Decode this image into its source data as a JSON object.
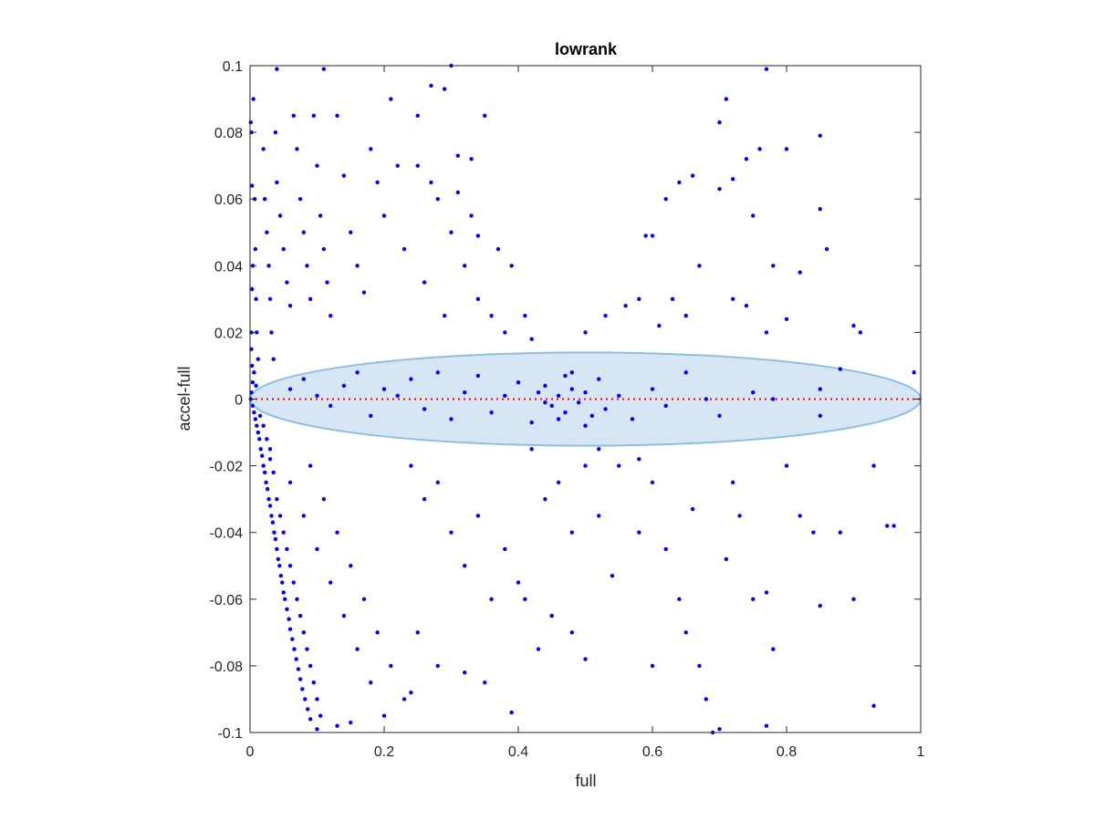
{
  "chart_data": {
    "type": "scatter",
    "title": "lowrank",
    "xlabel": "full",
    "ylabel": "accel-full",
    "xlim": [
      0,
      1
    ],
    "ylim": [
      -0.1,
      0.1
    ],
    "xticks": [
      0,
      0.2,
      0.4,
      0.6,
      0.8,
      1
    ],
    "yticks": [
      -0.1,
      -0.08,
      -0.06,
      -0.04,
      -0.02,
      0,
      0.02,
      0.04,
      0.06,
      0.08,
      0.1
    ],
    "xtick_labels": [
      "0",
      "0.2",
      "0.4",
      "0.6",
      "0.8",
      "1"
    ],
    "ytick_labels": [
      "-0.1",
      "-0.08",
      "-0.06",
      "-0.04",
      "-0.02",
      "0",
      "0.02",
      "0.04",
      "0.06",
      "0.08",
      "0.1"
    ],
    "grid": false,
    "box": true,
    "colors": {
      "points": "#0000ff",
      "zero_line": "#ff0000",
      "ellipse_fill": "#d6e6f4",
      "ellipse_edge": "#8ebfe0"
    },
    "reference_line": {
      "y": 0,
      "style": "dotted"
    },
    "ellipse": {
      "cx": 0.5,
      "cy": 0,
      "rx": 0.5,
      "ry": 0.014
    },
    "points": [
      [
        0.001,
        0.083
      ],
      [
        0.002,
        0.08
      ],
      [
        0.003,
        0.064
      ],
      [
        0.004,
        0.04
      ],
      [
        0.003,
        0.033
      ],
      [
        0.002,
        0.02
      ],
      [
        0.002,
        0.015
      ],
      [
        0.003,
        0.01
      ],
      [
        0.004,
        0.005
      ],
      [
        0.002,
        0.002
      ],
      [
        0.001,
        0
      ],
      [
        0.005,
        0.09
      ],
      [
        0.007,
        0.06
      ],
      [
        0.008,
        0.045
      ],
      [
        0.009,
        0.03
      ],
      [
        0.01,
        0.02
      ],
      [
        0.012,
        0.012
      ],
      [
        0.006,
        0.008
      ],
      [
        0.009,
        0.004
      ],
      [
        0.004,
        -0.002
      ],
      [
        0.006,
        -0.004
      ],
      [
        0.008,
        -0.006
      ],
      [
        0.01,
        -0.008
      ],
      [
        0.012,
        -0.01
      ],
      [
        0.014,
        -0.012
      ],
      [
        0.016,
        -0.015
      ],
      [
        0.018,
        -0.017
      ],
      [
        0.02,
        -0.02
      ],
      [
        0.022,
        -0.022
      ],
      [
        0.024,
        -0.025
      ],
      [
        0.026,
        -0.027
      ],
      [
        0.028,
        -0.03
      ],
      [
        0.03,
        -0.032
      ],
      [
        0.032,
        -0.035
      ],
      [
        0.034,
        -0.037
      ],
      [
        0.036,
        -0.04
      ],
      [
        0.038,
        -0.042
      ],
      [
        0.04,
        -0.045
      ],
      [
        0.042,
        -0.048
      ],
      [
        0.044,
        -0.05
      ],
      [
        0.046,
        -0.053
      ],
      [
        0.048,
        -0.055
      ],
      [
        0.05,
        -0.058
      ],
      [
        0.052,
        -0.06
      ],
      [
        0.055,
        -0.063
      ],
      [
        0.058,
        -0.066
      ],
      [
        0.06,
        -0.069
      ],
      [
        0.063,
        -0.072
      ],
      [
        0.066,
        -0.075
      ],
      [
        0.069,
        -0.078
      ],
      [
        0.072,
        -0.081
      ],
      [
        0.075,
        -0.084
      ],
      [
        0.078,
        -0.087
      ],
      [
        0.082,
        -0.09
      ],
      [
        0.086,
        -0.093
      ],
      [
        0.09,
        -0.096
      ],
      [
        0.1,
        -0.099
      ],
      [
        0.015,
        -0.005
      ],
      [
        0.02,
        -0.008
      ],
      [
        0.025,
        -0.012
      ],
      [
        0.03,
        -0.018
      ],
      [
        0.035,
        -0.022
      ],
      [
        0.04,
        -0.03
      ],
      [
        0.045,
        -0.035
      ],
      [
        0.05,
        -0.04
      ],
      [
        0.055,
        -0.045
      ],
      [
        0.06,
        -0.05
      ],
      [
        0.065,
        -0.055
      ],
      [
        0.07,
        -0.06
      ],
      [
        0.075,
        -0.065
      ],
      [
        0.08,
        -0.07
      ],
      [
        0.085,
        -0.075
      ],
      [
        0.09,
        -0.08
      ],
      [
        0.095,
        -0.085
      ],
      [
        0.1,
        -0.09
      ],
      [
        0.105,
        -0.095
      ],
      [
        0.02,
        0.075
      ],
      [
        0.022,
        0.06
      ],
      [
        0.025,
        0.05
      ],
      [
        0.028,
        0.04
      ],
      [
        0.03,
        0.03
      ],
      [
        0.032,
        0.02
      ],
      [
        0.035,
        0.012
      ],
      [
        0.038,
        0.08
      ],
      [
        0.04,
        0.065
      ],
      [
        0.045,
        0.055
      ],
      [
        0.05,
        0.045
      ],
      [
        0.055,
        0.035
      ],
      [
        0.06,
        0.028
      ],
      [
        0.065,
        0.085
      ],
      [
        0.07,
        0.075
      ],
      [
        0.075,
        0.06
      ],
      [
        0.08,
        0.05
      ],
      [
        0.085,
        0.04
      ],
      [
        0.09,
        0.03
      ],
      [
        0.095,
        0.085
      ],
      [
        0.1,
        0.07
      ],
      [
        0.105,
        0.055
      ],
      [
        0.11,
        0.045
      ],
      [
        0.115,
        0.035
      ],
      [
        0.12,
        0.025
      ],
      [
        0.13,
        0.085
      ],
      [
        0.14,
        0.067
      ],
      [
        0.15,
        0.05
      ],
      [
        0.16,
        0.04
      ],
      [
        0.17,
        0.032
      ],
      [
        0.18,
        0.075
      ],
      [
        0.19,
        0.065
      ],
      [
        0.2,
        0.055
      ],
      [
        0.21,
        0.09
      ],
      [
        0.22,
        0.07
      ],
      [
        0.23,
        0.045
      ],
      [
        0.04,
        0.099
      ],
      [
        0.11,
        0.099
      ],
      [
        0.03,
        -0.015
      ],
      [
        0.06,
        -0.025
      ],
      [
        0.08,
        -0.035
      ],
      [
        0.1,
        -0.045
      ],
      [
        0.12,
        -0.055
      ],
      [
        0.14,
        -0.065
      ],
      [
        0.16,
        -0.075
      ],
      [
        0.18,
        -0.085
      ],
      [
        0.2,
        -0.095
      ],
      [
        0.09,
        -0.02
      ],
      [
        0.11,
        -0.03
      ],
      [
        0.13,
        -0.04
      ],
      [
        0.15,
        -0.05
      ],
      [
        0.17,
        -0.06
      ],
      [
        0.19,
        -0.07
      ],
      [
        0.21,
        -0.08
      ],
      [
        0.23,
        -0.09
      ],
      [
        0.24,
        -0.088
      ],
      [
        0.13,
        -0.098
      ],
      [
        0.15,
        -0.097
      ],
      [
        0.06,
        0.003
      ],
      [
        0.08,
        0.006
      ],
      [
        0.1,
        0.001
      ],
      [
        0.12,
        -0.002
      ],
      [
        0.14,
        0.004
      ],
      [
        0.16,
        0.008
      ],
      [
        0.18,
        -0.005
      ],
      [
        0.2,
        0.003
      ],
      [
        0.22,
        0.001
      ],
      [
        0.24,
        0.006
      ],
      [
        0.26,
        -0.003
      ],
      [
        0.28,
        0.008
      ],
      [
        0.3,
        -0.006
      ],
      [
        0.32,
        0.002
      ],
      [
        0.34,
        0.007
      ],
      [
        0.36,
        -0.004
      ],
      [
        0.38,
        0.001
      ],
      [
        0.4,
        0.005
      ],
      [
        0.42,
        -0.007
      ],
      [
        0.44,
        0.004
      ],
      [
        0.45,
        -0.002
      ],
      [
        0.46,
        0.001
      ],
      [
        0.47,
        -0.004
      ],
      [
        0.48,
        0.003
      ],
      [
        0.49,
        -0.001
      ],
      [
        0.5,
        0.002
      ],
      [
        0.51,
        -0.005
      ],
      [
        0.52,
        0.006
      ],
      [
        0.44,
        -0.001
      ],
      [
        0.46,
        -0.006
      ],
      [
        0.48,
        0.008
      ],
      [
        0.5,
        -0.008
      ],
      [
        0.43,
        0.002
      ],
      [
        0.47,
        0.007
      ],
      [
        0.53,
        -0.003
      ],
      [
        0.55,
        0.001
      ],
      [
        0.57,
        -0.006
      ],
      [
        0.6,
        0.003
      ],
      [
        0.62,
        -0.002
      ],
      [
        0.65,
        0.008
      ],
      [
        0.68,
        0
      ],
      [
        0.7,
        -0.005
      ],
      [
        0.75,
        0.002
      ],
      [
        0.78,
        0
      ],
      [
        0.85,
        0.003
      ],
      [
        0.88,
        0.009
      ],
      [
        0.85,
        -0.005
      ],
      [
        0.99,
        0.008
      ],
      [
        0.25,
        0.085
      ],
      [
        0.27,
        0.094
      ],
      [
        0.29,
        0.093
      ],
      [
        0.3,
        0.1
      ],
      [
        0.31,
        0.073
      ],
      [
        0.33,
        0.072
      ],
      [
        0.35,
        0.085
      ],
      [
        0.25,
        0.07
      ],
      [
        0.28,
        0.06
      ],
      [
        0.3,
        0.05
      ],
      [
        0.32,
        0.04
      ],
      [
        0.34,
        0.03
      ],
      [
        0.36,
        0.025
      ],
      [
        0.38,
        0.02
      ],
      [
        0.26,
        0.035
      ],
      [
        0.29,
        0.025
      ],
      [
        0.33,
        0.055
      ],
      [
        0.37,
        0.045
      ],
      [
        0.39,
        0.04
      ],
      [
        0.41,
        0.025
      ],
      [
        0.42,
        0.018
      ],
      [
        0.27,
        0.065
      ],
      [
        0.31,
        0.062
      ],
      [
        0.34,
        0.049
      ],
      [
        0.24,
        -0.02
      ],
      [
        0.26,
        -0.03
      ],
      [
        0.28,
        -0.025
      ],
      [
        0.3,
        -0.04
      ],
      [
        0.32,
        -0.05
      ],
      [
        0.34,
        -0.035
      ],
      [
        0.36,
        -0.06
      ],
      [
        0.38,
        -0.045
      ],
      [
        0.4,
        -0.055
      ],
      [
        0.25,
        -0.07
      ],
      [
        0.28,
        -0.08
      ],
      [
        0.32,
        -0.082
      ],
      [
        0.35,
        -0.085
      ],
      [
        0.39,
        -0.094
      ],
      [
        0.42,
        -0.015
      ],
      [
        0.44,
        -0.03
      ],
      [
        0.46,
        -0.025
      ],
      [
        0.48,
        -0.04
      ],
      [
        0.5,
        -0.02
      ],
      [
        0.52,
        -0.035
      ],
      [
        0.54,
        -0.053
      ],
      [
        0.45,
        -0.065
      ],
      [
        0.48,
        -0.07
      ],
      [
        0.5,
        -0.078
      ],
      [
        0.55,
        -0.02
      ],
      [
        0.58,
        -0.018
      ],
      [
        0.6,
        -0.025
      ],
      [
        0.52,
        -0.015
      ],
      [
        0.41,
        -0.06
      ],
      [
        0.43,
        -0.075
      ],
      [
        0.5,
        0.02
      ],
      [
        0.53,
        0.025
      ],
      [
        0.56,
        0.028
      ],
      [
        0.59,
        0.049
      ],
      [
        0.6,
        0.049
      ],
      [
        0.62,
        0.06
      ],
      [
        0.64,
        0.065
      ],
      [
        0.66,
        0.067
      ],
      [
        0.58,
        0.03
      ],
      [
        0.61,
        0.022
      ],
      [
        0.63,
        0.03
      ],
      [
        0.65,
        0.025
      ],
      [
        0.67,
        0.04
      ],
      [
        0.7,
        0.063
      ],
      [
        0.72,
        0.066
      ],
      [
        0.74,
        0.072
      ],
      [
        0.76,
        0.075
      ],
      [
        0.8,
        0.075
      ],
      [
        0.7,
        0.083
      ],
      [
        0.71,
        0.09
      ],
      [
        0.75,
        0.055
      ],
      [
        0.78,
        0.04
      ],
      [
        0.82,
        0.038
      ],
      [
        0.85,
        0.057
      ],
      [
        0.86,
        0.045
      ],
      [
        0.85,
        0.079
      ],
      [
        0.72,
        0.03
      ],
      [
        0.74,
        0.028
      ],
      [
        0.77,
        0.02
      ],
      [
        0.8,
        0.024
      ],
      [
        0.9,
        0.022
      ],
      [
        0.91,
        0.02
      ],
      [
        0.77,
        0.099
      ],
      [
        0.58,
        -0.04
      ],
      [
        0.6,
        -0.08
      ],
      [
        0.62,
        -0.045
      ],
      [
        0.64,
        -0.06
      ],
      [
        0.65,
        -0.07
      ],
      [
        0.67,
        -0.08
      ],
      [
        0.68,
        -0.09
      ],
      [
        0.7,
        -0.099
      ],
      [
        0.71,
        -0.048
      ],
      [
        0.73,
        -0.035
      ],
      [
        0.75,
        -0.06
      ],
      [
        0.77,
        -0.058
      ],
      [
        0.78,
        -0.075
      ],
      [
        0.8,
        -0.02
      ],
      [
        0.82,
        -0.035
      ],
      [
        0.84,
        -0.04
      ],
      [
        0.85,
        -0.062
      ],
      [
        0.88,
        -0.04
      ],
      [
        0.9,
        -0.06
      ],
      [
        0.93,
        -0.02
      ],
      [
        0.95,
        -0.038
      ],
      [
        0.96,
        -0.038
      ],
      [
        0.93,
        -0.092
      ],
      [
        0.77,
        -0.098
      ],
      [
        0.69,
        -0.1
      ],
      [
        0.66,
        -0.033
      ],
      [
        0.72,
        -0.025
      ]
    ]
  }
}
